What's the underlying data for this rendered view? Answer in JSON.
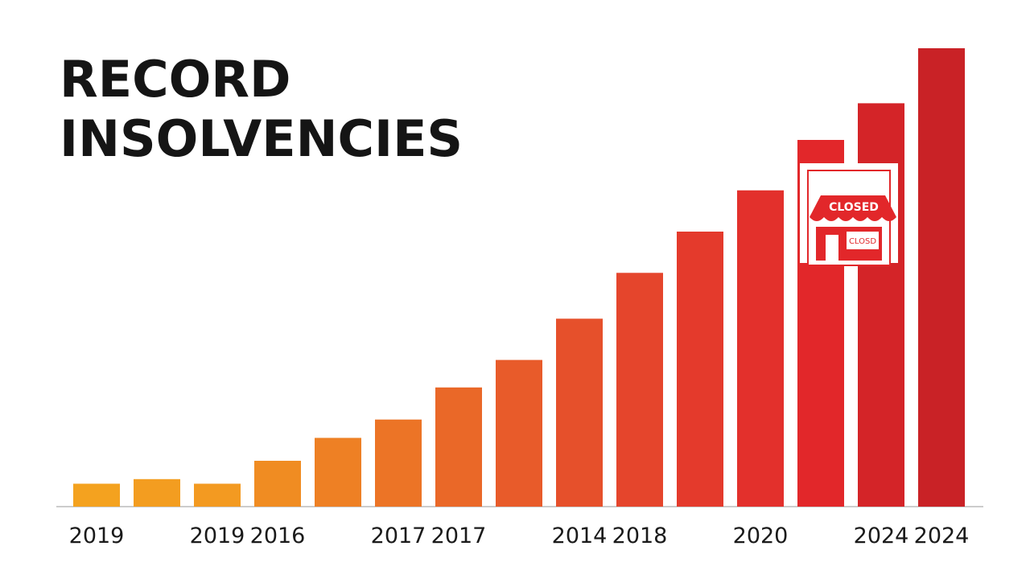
{
  "chart_data": {
    "type": "bar",
    "title": "RECORD INSOLVENCIES",
    "annotations": [
      "CLOSED",
      "CLOSD"
    ],
    "categories": [
      "2019",
      null,
      "2019",
      "2016",
      null,
      "2017",
      "2017",
      null,
      "2014",
      "2018",
      null,
      "2020",
      null,
      "2024",
      "2024"
    ],
    "values": [
      5,
      6,
      5,
      10,
      15,
      19,
      26,
      32,
      41,
      51,
      60,
      69,
      80,
      88,
      100
    ],
    "colors": [
      "#f4a21f",
      "#f39d20",
      "#f39a21",
      "#f08c22",
      "#ee8024",
      "#ec7426",
      "#ea6828",
      "#e85b2a",
      "#e6502b",
      "#e5452c",
      "#e43a2c",
      "#e3302c",
      "#e2272a",
      "#d42428",
      "#c92226"
    ]
  }
}
